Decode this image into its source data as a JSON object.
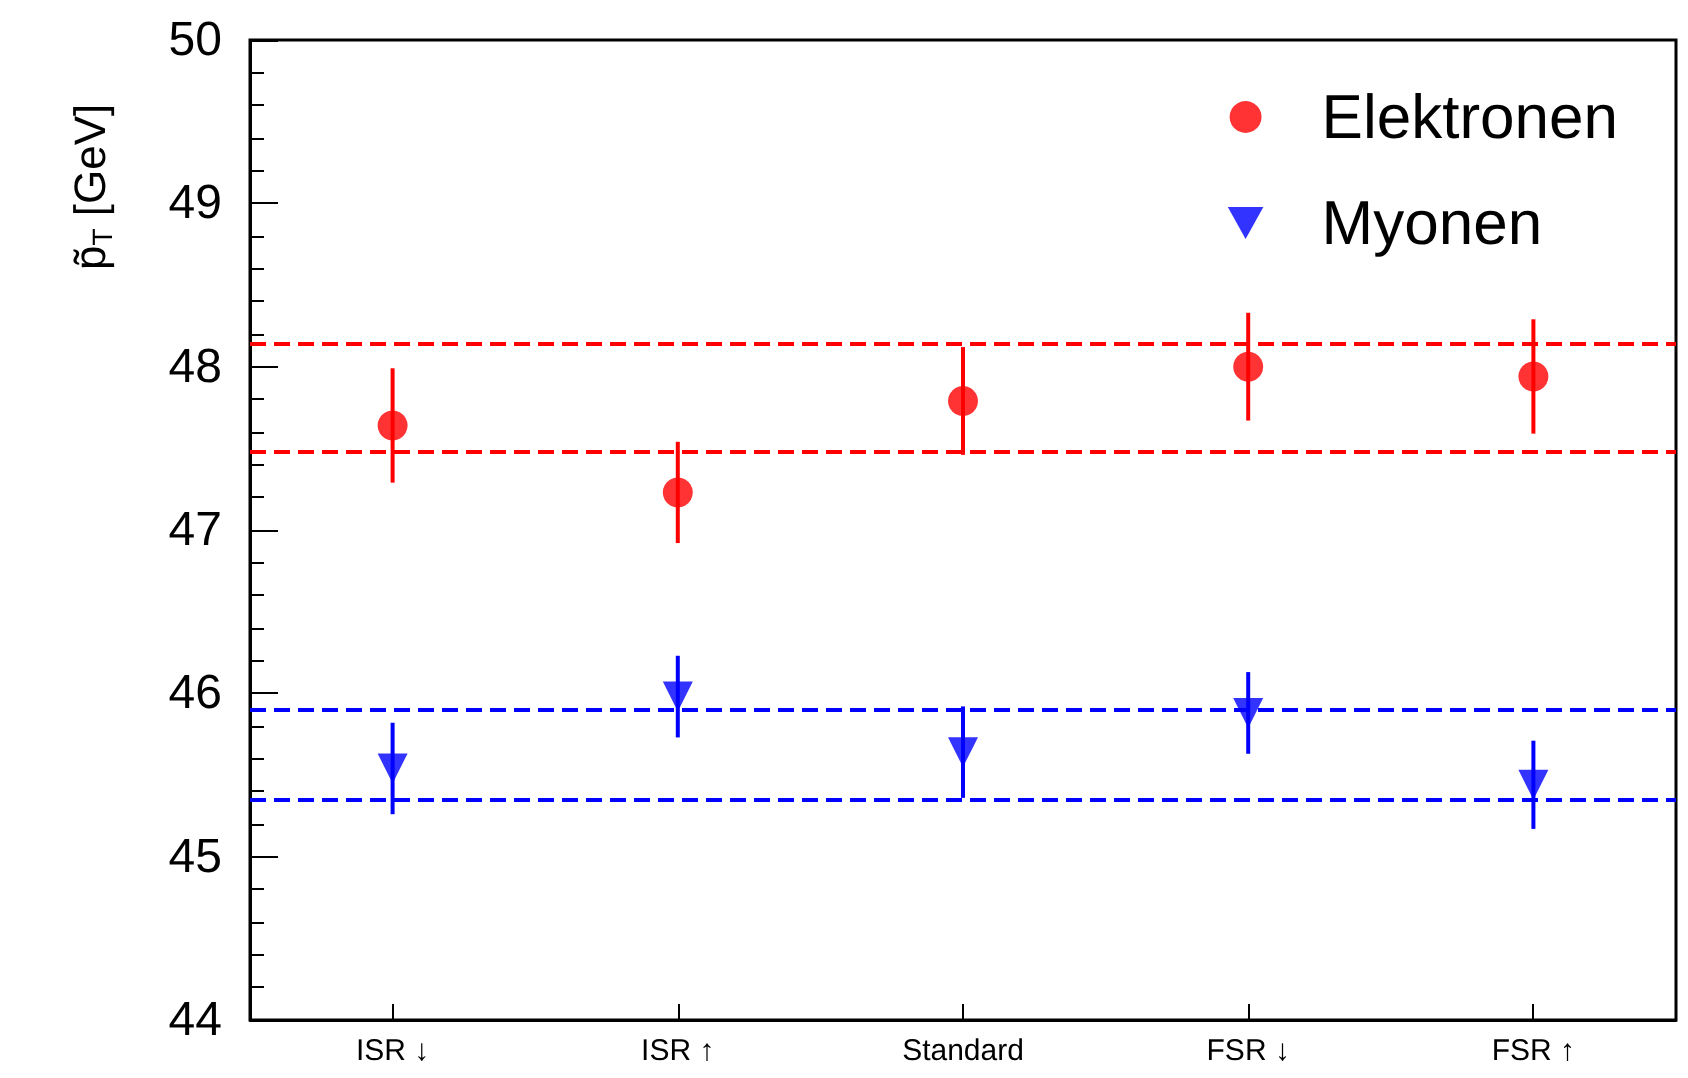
{
  "chart_data": {
    "type": "scatter",
    "ylabel": "p̃$_{T}$ [GeV]",
    "categories": [
      "ISR ↓",
      "ISR ↑",
      "Standard",
      "FSR ↓",
      "FSR ↑"
    ],
    "series": [
      {
        "name": "Elektronen",
        "color": "#ff0000",
        "marker": "circle",
        "values": [
          47.64,
          47.23,
          47.79,
          48.0,
          47.94
        ],
        "errors": [
          0.35,
          0.31,
          0.33,
          0.33,
          0.35
        ]
      },
      {
        "name": "Myonen",
        "color": "#0000ff",
        "marker": "triangle",
        "values": [
          45.54,
          45.98,
          45.64,
          45.88,
          45.44
        ],
        "errors": [
          0.28,
          0.25,
          0.28,
          0.25,
          0.27
        ]
      }
    ],
    "ref_lines": [
      {
        "axis": "y",
        "value": 48.14,
        "color": "#ff0000",
        "line_style": "dashed"
      },
      {
        "axis": "y",
        "value": 47.48,
        "color": "#ff0000",
        "line_style": "dashed"
      },
      {
        "axis": "y",
        "value": 45.9,
        "color": "#0000ff",
        "line_style": "dashed"
      },
      {
        "axis": "y",
        "value": 45.35,
        "color": "#0000ff",
        "line_style": "dashed"
      }
    ],
    "ylim": [
      44,
      50
    ],
    "yticks": [
      44,
      45,
      46,
      47,
      48,
      49,
      50
    ],
    "grid": false,
    "legend": "top right"
  }
}
